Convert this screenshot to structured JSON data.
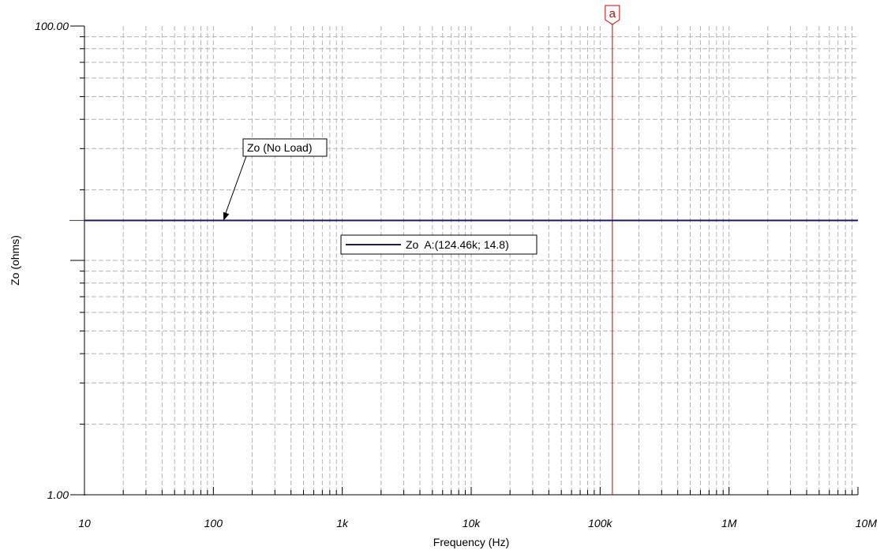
{
  "chart_data": {
    "type": "line",
    "xlabel": "Frequency (Hz)",
    "ylabel": "Zo (ohms)",
    "x_scale": "log",
    "y_scale": "log",
    "xlim": [
      10,
      10000000
    ],
    "ylim": [
      1,
      100
    ],
    "x_tick_labels": [
      {
        "value": 10,
        "label": "10"
      },
      {
        "value": 100,
        "label": "100"
      },
      {
        "value": 1000,
        "label": "1k"
      },
      {
        "value": 10000,
        "label": "10k"
      },
      {
        "value": 100000,
        "label": "100k"
      },
      {
        "value": 1000000,
        "label": "1M"
      },
      {
        "value": 10000000,
        "label": "10M"
      }
    ],
    "y_tick_labels": [
      {
        "value": 100,
        "label": "100.00"
      },
      {
        "value": 1,
        "label": "1.00"
      }
    ],
    "grid": true,
    "series": [
      {
        "name": "Zo",
        "color": "#1a1a6e",
        "x": [
          10,
          100,
          1000,
          10000,
          100000,
          1000000,
          10000000
        ],
        "y": [
          14.8,
          14.8,
          14.8,
          14.8,
          14.8,
          14.8,
          14.8
        ]
      }
    ],
    "cursor": {
      "label": "a",
      "x": 124460,
      "y": 14.8,
      "color": "#cc0000"
    },
    "legend": {
      "text": "Zo  A:(124.46k; 14.8)",
      "placement": "center"
    },
    "annotations": [
      {
        "text": "Zo (No Load)",
        "points_to": {
          "x": 120,
          "y": 14.8
        }
      }
    ]
  }
}
